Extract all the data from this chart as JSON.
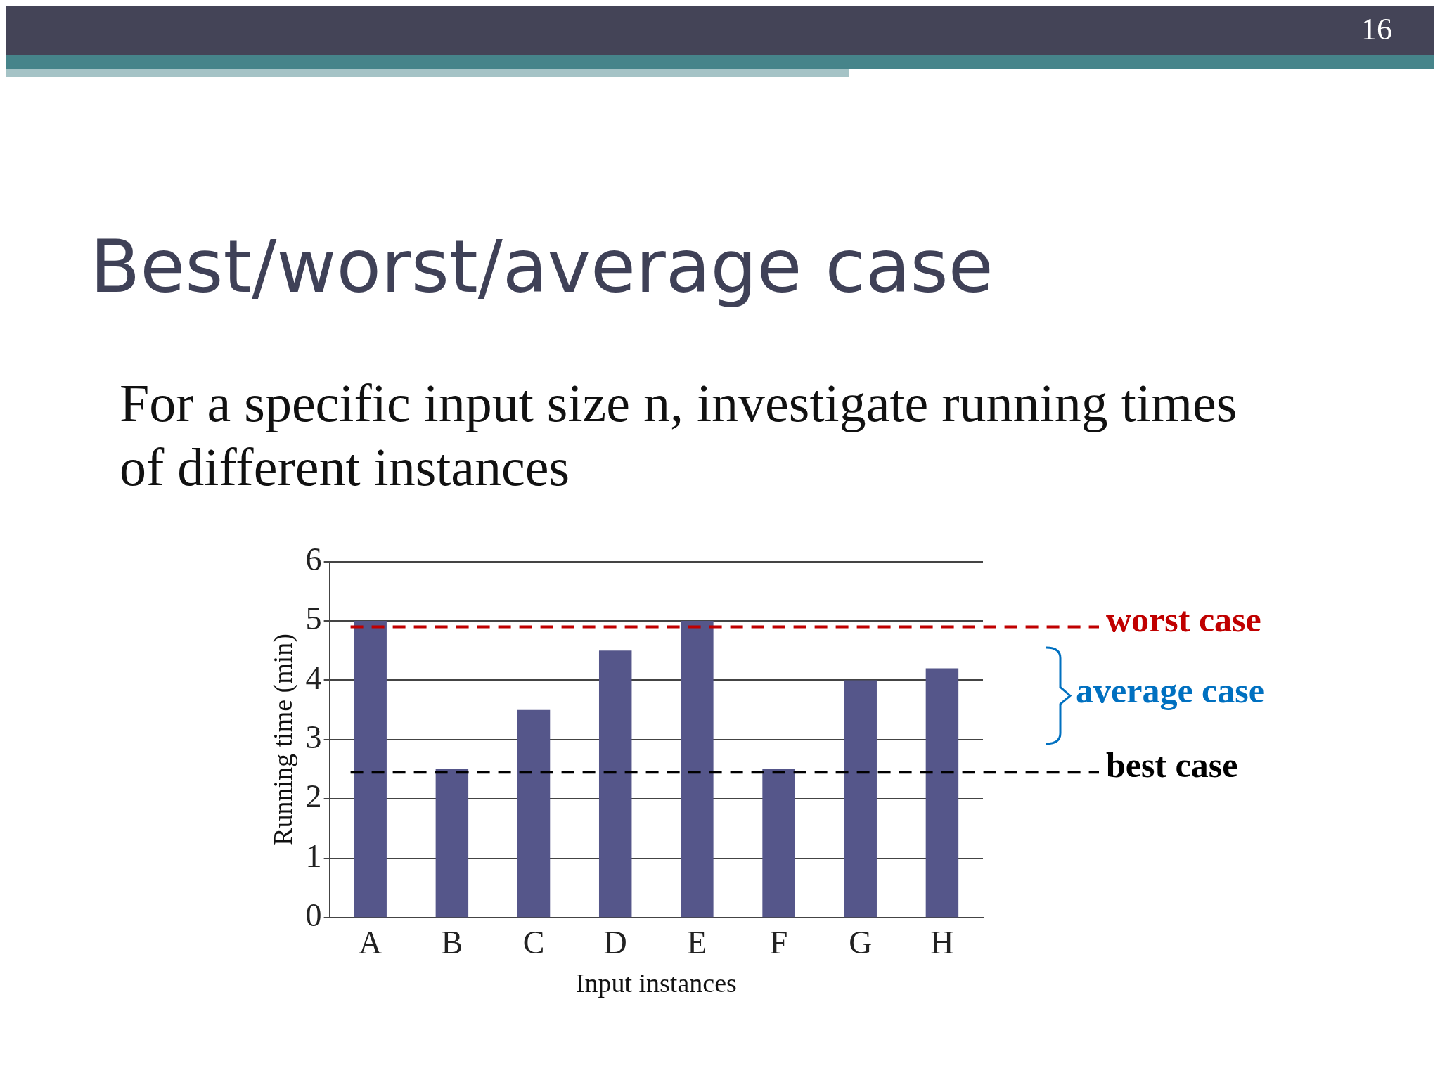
{
  "chart_data": {
    "type": "bar",
    "title": "Best/worst/average case",
    "subtitle": "For a specific input size n, investigate running times of different instances",
    "xlabel": "Input instances",
    "ylabel": "Running time (min)",
    "categories": [
      "A",
      "B",
      "C",
      "D",
      "E",
      "F",
      "G",
      "H"
    ],
    "values": [
      5,
      2.5,
      3.5,
      4.5,
      5,
      2.5,
      4,
      4.2
    ],
    "color": "#55568a",
    "ylim": [
      0,
      6
    ],
    "yticks": [
      0,
      1,
      2,
      3,
      4,
      5,
      6
    ],
    "grid": "y",
    "legend": false,
    "ref_lines": [
      {
        "axis": "y",
        "value": 4.9,
        "label": "worst case",
        "color": "#c00000",
        "line_style": "dashed"
      },
      {
        "axis": "y",
        "value": 2.45,
        "label": "best case",
        "color": "#000000",
        "line_style": "dashed"
      }
    ],
    "annotations": [
      "16",
      "average case"
    ]
  }
}
